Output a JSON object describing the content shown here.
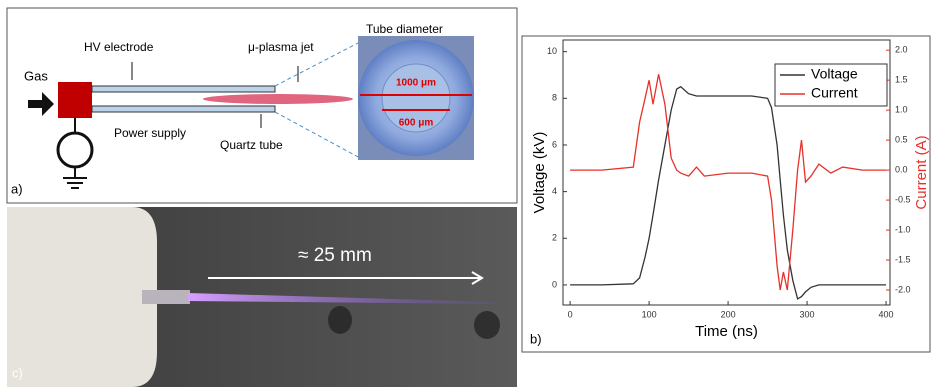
{
  "panel_a": {
    "gas": "Gas",
    "hv_electrode": "HV electrode",
    "jet": "μ-plasma jet",
    "tube_diameter": "Tube diameter",
    "outer": "1000 μm",
    "inner": "600 μm",
    "power_supply": "Power supply",
    "quartz_tube": "Quartz tube",
    "label": "a)"
  },
  "panel_c": {
    "length": "≈ 25 mm",
    "label": "c)"
  },
  "panel_b_label": "b)",
  "chart_data": {
    "type": "line",
    "x_label": "Time (ns)",
    "y_label": "Voltage (kV)",
    "y2_label": "Current (A)",
    "x": [
      0,
      40,
      80,
      88,
      95,
      100,
      105,
      112,
      120,
      128,
      135,
      140,
      150,
      160,
      170,
      200,
      230,
      250,
      255,
      262,
      266,
      270,
      275,
      282,
      288,
      293,
      298,
      305,
      315,
      330,
      345,
      370,
      400
    ],
    "series": [
      {
        "name": "Voltage",
        "color": "#333333",
        "values": [
          0,
          0,
          0.05,
          0.3,
          1.2,
          2.0,
          3.0,
          4.5,
          6.0,
          7.5,
          8.4,
          8.5,
          8.2,
          8.1,
          8.1,
          8.1,
          8.1,
          8.0,
          7.6,
          6.0,
          4.5,
          3.0,
          1.5,
          0.2,
          -0.6,
          -0.5,
          -0.3,
          -0.1,
          0,
          0,
          0,
          0,
          0
        ]
      },
      {
        "name": "Current",
        "color": "#e8302a",
        "axis": "y2",
        "values": [
          0,
          0,
          0.05,
          0.8,
          1.2,
          1.5,
          1.1,
          1.6,
          1.1,
          0.2,
          0.0,
          -0.05,
          -0.1,
          0.05,
          -0.1,
          -0.05,
          -0.05,
          -0.1,
          -0.5,
          -1.6,
          -2.0,
          -1.7,
          -2.0,
          -1.0,
          0.0,
          0.5,
          -0.2,
          -0.1,
          0.1,
          -0.05,
          0.05,
          0,
          0
        ]
      }
    ],
    "xlim": [
      -9,
      405
    ],
    "xticks": [
      0,
      100,
      200,
      300,
      400
    ],
    "ylim": [
      -0.86,
      10.5
    ],
    "yticks": [
      0,
      2,
      4,
      6,
      8,
      10
    ],
    "y2lim": [
      -2.25,
      2.17
    ],
    "y2ticks": [
      {
        "value": -2,
        "label": "-2.0"
      },
      -1.5,
      {
        "value": -1,
        "label": "-1.0"
      },
      -0.5,
      {
        "value": 0,
        "label": "0.0"
      },
      0.5,
      {
        "value": 1,
        "label": "1.0"
      },
      1.5,
      {
        "value": 2,
        "label": "2.0"
      }
    ],
    "y2_color": "#e8302a",
    "legend": "upper right"
  }
}
